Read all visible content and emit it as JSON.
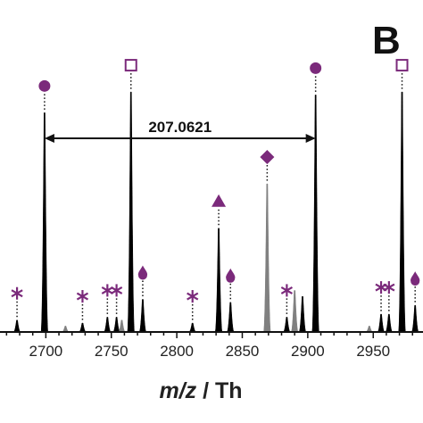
{
  "panel_label": "B",
  "chart_data": {
    "type": "line",
    "title": "",
    "xlabel_italic": "m/z",
    "xlabel_unit": " / Th",
    "ylabel": "",
    "xlim": [
      2665,
      2988
    ],
    "ylim": [
      0,
      1.0
    ],
    "x_ticks": [
      2700,
      2750,
      2800,
      2850,
      2900,
      2950
    ],
    "grid": false,
    "colors": {
      "black_series": "#000000",
      "gray_series": "#808080",
      "marker": "#7b2a7b"
    },
    "series": [
      {
        "color": "black",
        "peaks": [
          {
            "x": 2678,
            "y": 0.04
          },
          {
            "x": 2699,
            "y": 0.74
          },
          {
            "x": 2728,
            "y": 0.03
          },
          {
            "x": 2747,
            "y": 0.05
          },
          {
            "x": 2754,
            "y": 0.05
          },
          {
            "x": 2765,
            "y": 0.81
          },
          {
            "x": 2774,
            "y": 0.11
          },
          {
            "x": 2812,
            "y": 0.03
          },
          {
            "x": 2832,
            "y": 0.35
          },
          {
            "x": 2841,
            "y": 0.1
          },
          {
            "x": 2884,
            "y": 0.05
          },
          {
            "x": 2896,
            "y": 0.12
          },
          {
            "x": 2906,
            "y": 0.8
          },
          {
            "x": 2956,
            "y": 0.06
          },
          {
            "x": 2962,
            "y": 0.06
          },
          {
            "x": 2972,
            "y": 0.81
          },
          {
            "x": 2982,
            "y": 0.09
          }
        ]
      },
      {
        "color": "gray",
        "peaks": [
          {
            "x": 2715,
            "y": 0.02
          },
          {
            "x": 2758,
            "y": 0.04
          },
          {
            "x": 2869,
            "y": 0.5
          },
          {
            "x": 2890,
            "y": 0.14
          },
          {
            "x": 2947,
            "y": 0.02
          }
        ]
      }
    ],
    "annotations": {
      "markers": [
        {
          "shape": "circle",
          "x": 2699,
          "y": 0.74
        },
        {
          "shape": "square",
          "x": 2765,
          "y": 0.81
        },
        {
          "shape": "circle",
          "x": 2906,
          "y": 0.8
        },
        {
          "shape": "square",
          "x": 2972,
          "y": 0.81
        },
        {
          "shape": "triangle",
          "x": 2832,
          "y": 0.35
        },
        {
          "shape": "diamond",
          "x": 2869,
          "y": 0.5
        },
        {
          "shape": "drop",
          "x": 2774,
          "y": 0.11
        },
        {
          "shape": "drop",
          "x": 2841,
          "y": 0.1
        },
        {
          "shape": "drop",
          "x": 2982,
          "y": 0.09
        },
        {
          "shape": "asterisk",
          "x": 2678,
          "y": 0.04
        },
        {
          "shape": "asterisk",
          "x": 2728,
          "y": 0.03
        },
        {
          "shape": "asterisk",
          "x": 2747,
          "y": 0.05
        },
        {
          "shape": "asterisk",
          "x": 2754,
          "y": 0.05
        },
        {
          "shape": "asterisk",
          "x": 2812,
          "y": 0.03
        },
        {
          "shape": "asterisk",
          "x": 2884,
          "y": 0.05
        },
        {
          "shape": "asterisk",
          "x": 2956,
          "y": 0.06
        },
        {
          "shape": "asterisk",
          "x": 2962,
          "y": 0.06
        }
      ],
      "span": {
        "x1": 2699,
        "x2": 2906,
        "label": "207.0621"
      }
    }
  }
}
